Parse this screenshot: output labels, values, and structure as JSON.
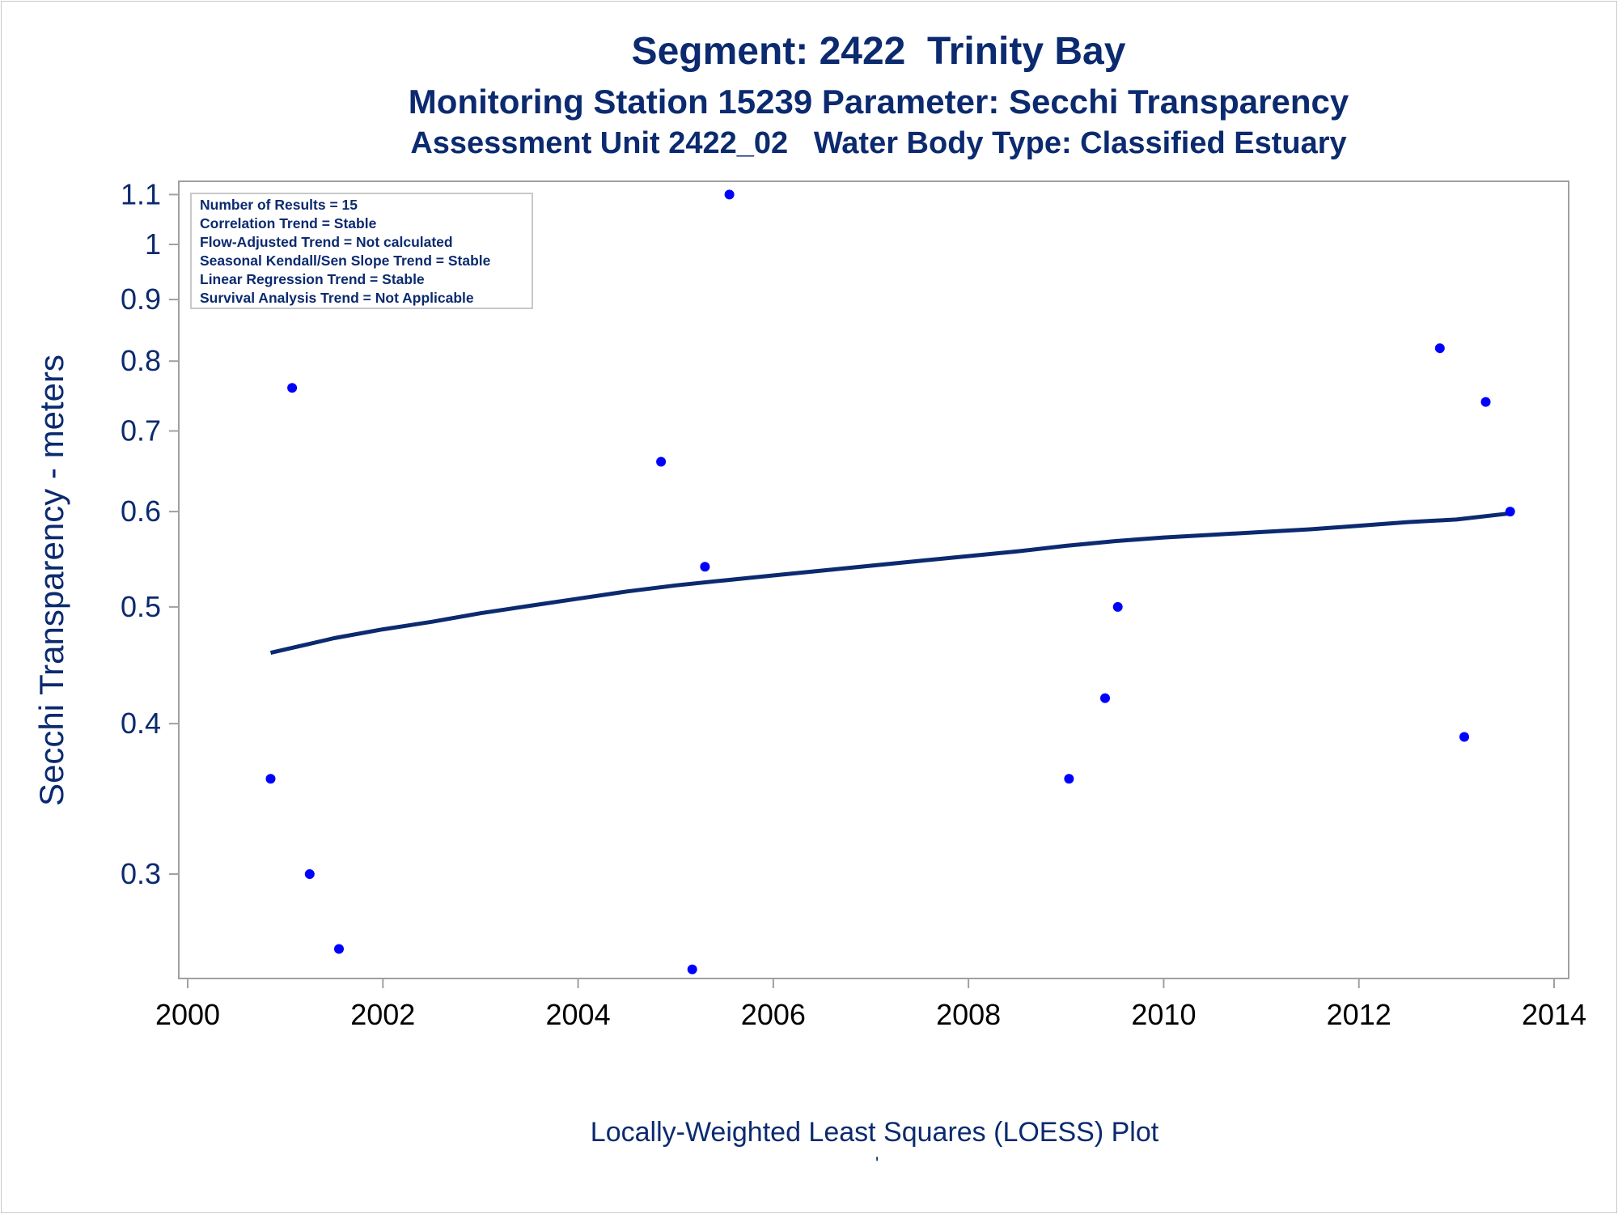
{
  "titles": {
    "line1": "Segment: 2422  Trinity Bay",
    "line2": "Monitoring Station 15239 Parameter: Secchi Transparency",
    "line3": "Assessment Unit 2422_02   Water Body Type: Classified Estuary"
  },
  "footnote": "Locally-Weighted Least Squares (LOESS) Plot",
  "footnote_mark": "'",
  "inset": {
    "lines": [
      "Number of Results = 15",
      "Correlation Trend = Stable",
      "Flow-Adjusted Trend = Not calculated",
      "Seasonal Kendall/Sen Slope Trend = Stable",
      "Linear Regression Trend = Stable",
      "Survival Analysis Trend = Not Applicable"
    ]
  },
  "colors": {
    "title": "#0b2a6f",
    "points": "#0000ff",
    "loess_line": "#0b2a6f",
    "axis": "#a0a0a0"
  },
  "chart_data": {
    "type": "scatter",
    "title": "Segment: 2422  Trinity Bay",
    "xlabel": "",
    "ylabel": "Secchi Transparency - meters",
    "xlim": [
      2000,
      2014
    ],
    "ylim": [
      0.25,
      1.12
    ],
    "y_scale": "log",
    "x_ticks": [
      2000,
      2002,
      2004,
      2006,
      2008,
      2010,
      2012,
      2014
    ],
    "y_ticks": [
      0.3,
      0.4,
      0.5,
      0.6,
      0.7,
      0.8,
      0.9,
      1,
      1.1
    ],
    "grid": false,
    "legend": "inset top-left",
    "series": [
      {
        "type": "scatter",
        "x": [
          2000.85,
          2001.07,
          2001.25,
          2001.55,
          2004.85,
          2005.17,
          2005.3,
          2005.55,
          2009.03,
          2009.4,
          2009.53,
          2012.83,
          2013.08,
          2013.3,
          2013.55
        ],
        "y": [
          0.36,
          0.76,
          0.3,
          0.26,
          0.66,
          0.25,
          0.54,
          1.1,
          0.36,
          0.42,
          0.5,
          0.82,
          0.39,
          0.74,
          0.6
        ]
      },
      {
        "type": "line",
        "x": [
          2000.85,
          2001.5,
          2002.0,
          2002.5,
          2003.0,
          2003.5,
          2004.0,
          2004.5,
          2005.0,
          2005.5,
          2006.0,
          2006.5,
          2007.0,
          2007.5,
          2008.0,
          2008.5,
          2009.0,
          2009.5,
          2010.0,
          2010.5,
          2011.0,
          2011.5,
          2012.0,
          2012.5,
          2013.0,
          2013.55
        ],
        "y": [
          0.458,
          0.471,
          0.479,
          0.486,
          0.494,
          0.501,
          0.508,
          0.515,
          0.521,
          0.526,
          0.531,
          0.536,
          0.541,
          0.546,
          0.551,
          0.556,
          0.562,
          0.567,
          0.571,
          0.574,
          0.577,
          0.58,
          0.584,
          0.588,
          0.591,
          0.598
        ]
      }
    ]
  }
}
